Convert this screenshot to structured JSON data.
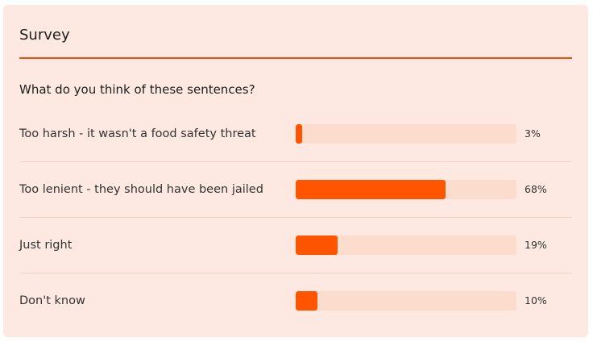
{
  "survey": {
    "title": "Survey",
    "question": "What do you think of these sentences?",
    "options": [
      {
        "label": "Too harsh - it wasn't a food safety threat",
        "percent_label": "3%",
        "value": 3
      },
      {
        "label": "Too lenient - they should have been jailed",
        "percent_label": "68%",
        "value": 68
      },
      {
        "label": "Just right",
        "percent_label": "19%",
        "value": 19
      },
      {
        "label": "Don't know",
        "percent_label": "10%",
        "value": 10
      }
    ]
  },
  "colors": {
    "card_background": "#fde9e1",
    "accent": "#ff5500",
    "bar_track": "#fcdccd"
  }
}
